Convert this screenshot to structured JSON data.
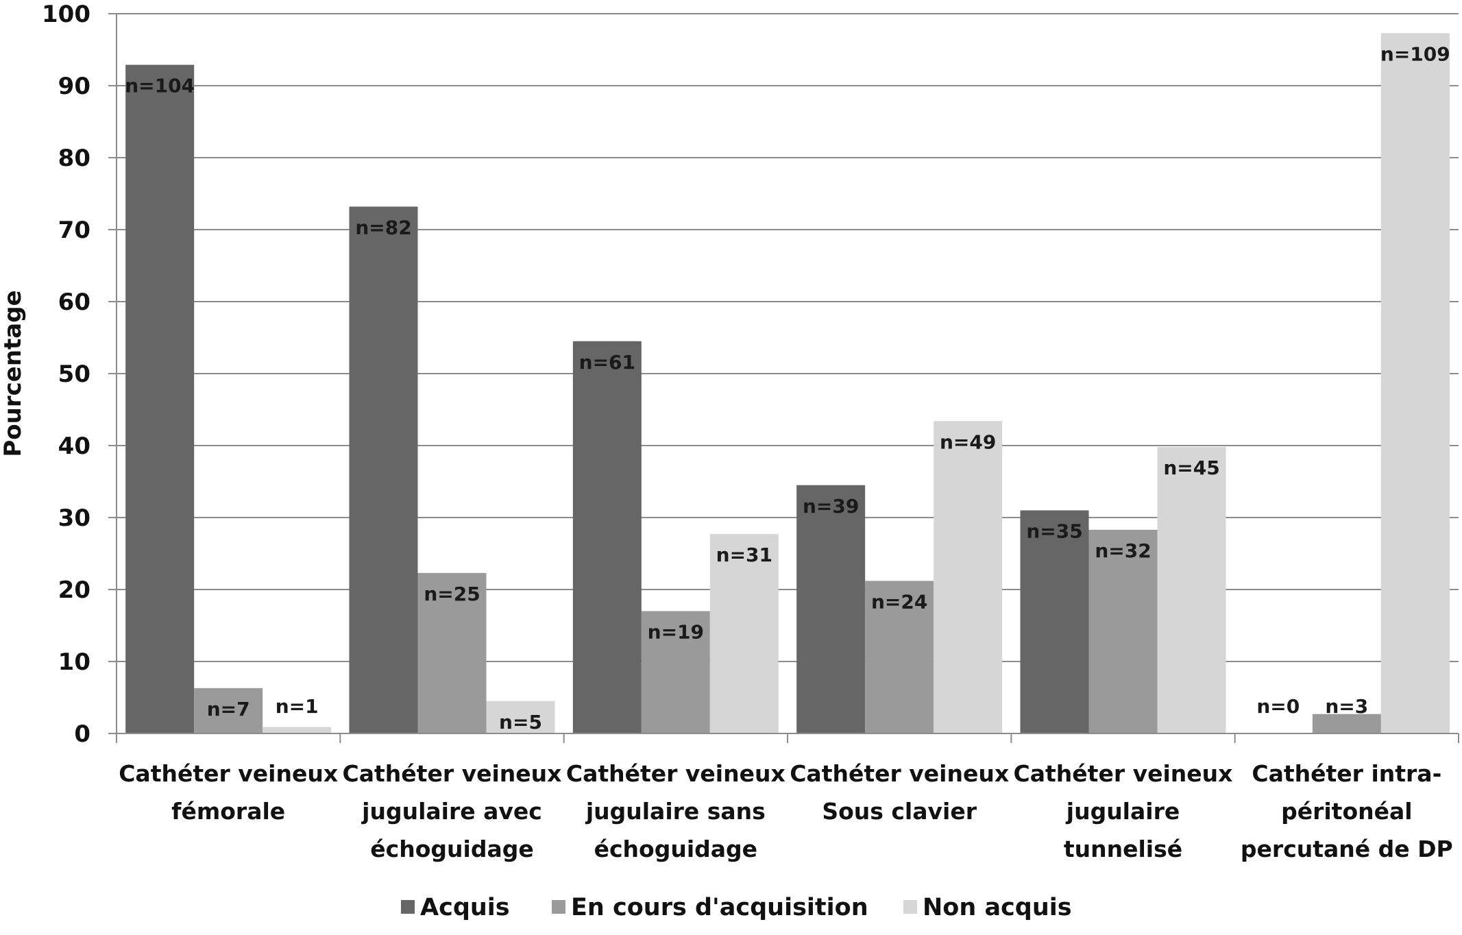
{
  "chart_data": {
    "type": "bar",
    "title": "",
    "xlabel": "",
    "ylabel": "Pourcentage",
    "ylim": [
      0,
      100
    ],
    "yticks": [
      0,
      10,
      20,
      30,
      40,
      50,
      60,
      70,
      80,
      90,
      100
    ],
    "grid": true,
    "legend_position": "bottom",
    "categories": [
      [
        "Cathéter veineux",
        "fémorale"
      ],
      [
        "Cathéter veineux",
        "jugulaire avec",
        "échoguidage"
      ],
      [
        "Cathéter veineux",
        "jugulaire sans",
        "échoguidage"
      ],
      [
        "Cathéter veineux",
        "Sous clavier"
      ],
      [
        "Cathéter veineux",
        "jugulaire",
        "tunnelisé"
      ],
      [
        "Cathéter intra-",
        "péritonéal",
        "percutané de DP"
      ]
    ],
    "series": [
      {
        "name": "Acquis",
        "color": "#666666",
        "values": [
          92.9,
          73.2,
          54.5,
          34.5,
          31.0,
          0
        ],
        "labels": [
          "n=104",
          "n=82",
          "n=61",
          "n=39",
          "n=35",
          "n=0"
        ]
      },
      {
        "name": "En cours d'acquisition",
        "color": "#9a9a9a",
        "values": [
          6.3,
          22.3,
          17.0,
          21.2,
          28.3,
          2.7
        ],
        "labels": [
          "n=7",
          "n=25",
          "n=19",
          "n=24",
          "n=32",
          "n=3"
        ]
      },
      {
        "name": "Non acquis",
        "color": "#d6d6d6",
        "values": [
          0.9,
          4.5,
          27.7,
          43.4,
          39.8,
          97.3
        ],
        "labels": [
          "n=1",
          "n=5",
          "n=31",
          "n=49",
          "n=45",
          "n=109"
        ]
      }
    ]
  }
}
